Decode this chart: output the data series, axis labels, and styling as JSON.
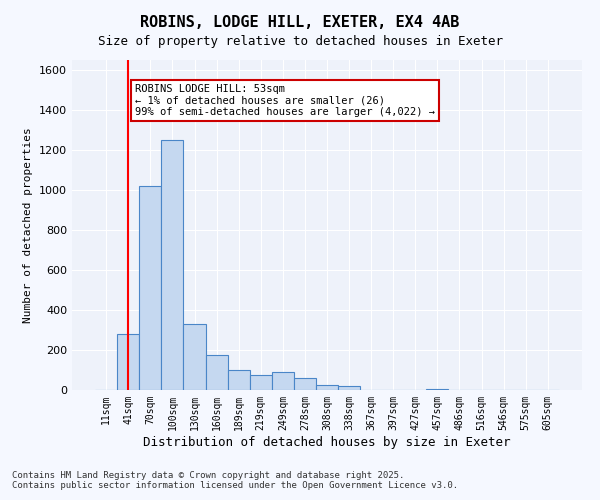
{
  "title_line1": "ROBINS, LODGE HILL, EXETER, EX4 4AB",
  "title_line2": "Size of property relative to detached houses in Exeter",
  "xlabel": "Distribution of detached houses by size in Exeter",
  "ylabel": "Number of detached properties",
  "bar_labels": [
    "11sqm",
    "41sqm",
    "70sqm",
    "100sqm",
    "130sqm",
    "160sqm",
    "189sqm",
    "219sqm",
    "249sqm",
    "278sqm",
    "308sqm",
    "338sqm",
    "367sqm",
    "397sqm",
    "427sqm",
    "457sqm",
    "486sqm",
    "516sqm",
    "546sqm",
    "575sqm",
    "605sqm"
  ],
  "bar_values": [
    0,
    280,
    1020,
    1250,
    330,
    175,
    100,
    75,
    90,
    60,
    25,
    20,
    0,
    0,
    0,
    5,
    0,
    0,
    0,
    0,
    0
  ],
  "bar_color": "#c5d8f0",
  "bar_edge_color": "#4a86c8",
  "background_color": "#eef2fa",
  "grid_color": "#ffffff",
  "ylim": [
    0,
    1650
  ],
  "yticks": [
    0,
    200,
    400,
    600,
    800,
    1000,
    1200,
    1400,
    1600
  ],
  "red_line_x": 1,
  "annotation_text": "ROBINS LODGE HILL: 53sqm\n← 1% of detached houses are smaller (26)\n99% of semi-detached houses are larger (4,022) →",
  "annotation_box_color": "#ffffff",
  "annotation_box_edge": "#cc0000",
  "footnote": "Contains HM Land Registry data © Crown copyright and database right 2025.\nContains public sector information licensed under the Open Government Licence v3.0."
}
